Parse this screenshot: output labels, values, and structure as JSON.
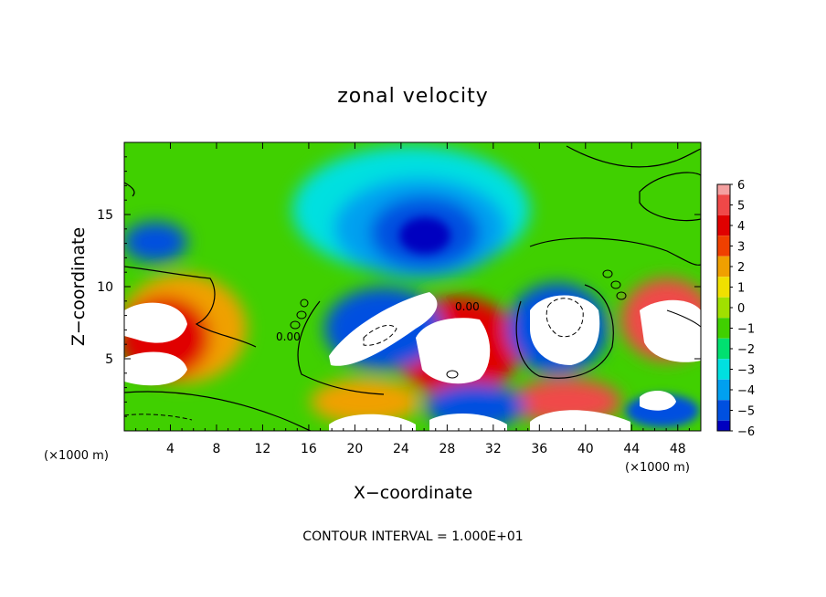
{
  "chart_data": {
    "type": "heatmap",
    "title": "zonal velocity",
    "xlabel": "X−coordinate",
    "ylabel": "Z−coordinate",
    "x_unit": "(×1000 m)",
    "y_unit": "(×1000 m)",
    "xlim": [
      0,
      50
    ],
    "ylim": [
      0,
      20
    ],
    "x_ticks": [
      4,
      8,
      12,
      16,
      20,
      24,
      28,
      32,
      36,
      40,
      44,
      48
    ],
    "y_ticks": [
      5,
      10,
      15
    ],
    "colorbar": {
      "ticks": [
        6,
        5,
        4,
        3,
        2,
        1,
        0,
        -1,
        -2,
        -3,
        -4,
        -5,
        -6
      ],
      "colors": [
        "#f4a0a0",
        "#f04848",
        "#e00000",
        "#f04000",
        "#f0a000",
        "#f0e000",
        "#a0e000",
        "#40d000",
        "#00e070",
        "#00e0e0",
        "#00a0f0",
        "#0050e0",
        "#0000c0",
        "#5000a0"
      ]
    },
    "contour_labels": [
      "0.00",
      "0.00"
    ],
    "footer": "CONTOUR INTERVAL = 1.000E+01"
  }
}
